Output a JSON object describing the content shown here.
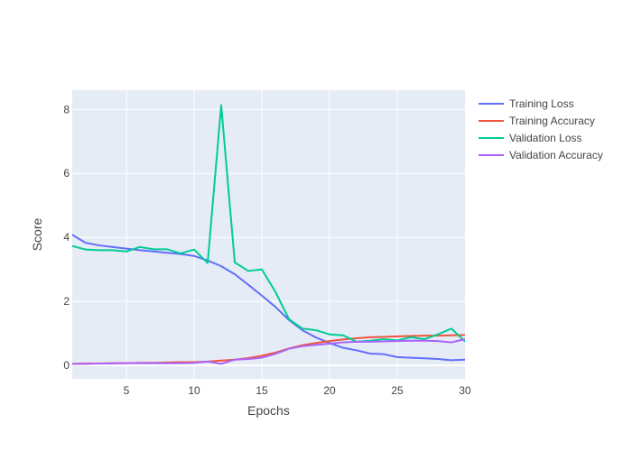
{
  "chart_data": {
    "type": "line",
    "xlabel": "Epochs",
    "ylabel": "Score",
    "xlim": [
      1,
      30
    ],
    "ylim": [
      -0.42,
      8.6
    ],
    "x_ticks": [
      5,
      10,
      15,
      20,
      25,
      30
    ],
    "y_ticks": [
      0,
      2,
      4,
      6,
      8
    ],
    "grid": true,
    "legend_position": "top-right outside",
    "plot_background": "#E5ECF6",
    "x": [
      1,
      2,
      3,
      4,
      5,
      6,
      7,
      8,
      9,
      10,
      11,
      12,
      13,
      14,
      15,
      16,
      17,
      18,
      19,
      20,
      21,
      22,
      23,
      24,
      25,
      26,
      27,
      28,
      29,
      30
    ],
    "series": [
      {
        "name": "Training Loss",
        "color": "#636EFA",
        "values": [
          4.08,
          3.83,
          3.75,
          3.7,
          3.65,
          3.6,
          3.56,
          3.52,
          3.48,
          3.42,
          3.28,
          3.1,
          2.85,
          2.52,
          2.18,
          1.83,
          1.42,
          1.1,
          0.87,
          0.7,
          0.55,
          0.47,
          0.37,
          0.35,
          0.26,
          0.24,
          0.22,
          0.2,
          0.16,
          0.18
        ]
      },
      {
        "name": "Training Accuracy",
        "color": "#EF553B",
        "values": [
          0.05,
          0.06,
          0.06,
          0.07,
          0.07,
          0.08,
          0.08,
          0.09,
          0.1,
          0.1,
          0.12,
          0.15,
          0.18,
          0.23,
          0.3,
          0.4,
          0.53,
          0.63,
          0.7,
          0.76,
          0.81,
          0.85,
          0.88,
          0.89,
          0.91,
          0.92,
          0.93,
          0.93,
          0.94,
          0.95
        ]
      },
      {
        "name": "Validation Loss",
        "color": "#00CC96",
        "values": [
          3.73,
          3.62,
          3.6,
          3.6,
          3.56,
          3.7,
          3.63,
          3.63,
          3.5,
          3.62,
          3.2,
          8.13,
          3.22,
          2.95,
          3.0,
          2.3,
          1.45,
          1.15,
          1.1,
          0.97,
          0.94,
          0.74,
          0.77,
          0.82,
          0.78,
          0.88,
          0.82,
          0.97,
          1.15,
          0.75
        ]
      },
      {
        "name": "Validation Accuracy",
        "color": "#AB63FA",
        "values": [
          0.05,
          0.05,
          0.06,
          0.06,
          0.07,
          0.07,
          0.07,
          0.07,
          0.07,
          0.08,
          0.12,
          0.05,
          0.18,
          0.2,
          0.24,
          0.36,
          0.52,
          0.6,
          0.64,
          0.68,
          0.72,
          0.74,
          0.74,
          0.75,
          0.76,
          0.77,
          0.77,
          0.76,
          0.72,
          0.82
        ]
      }
    ]
  }
}
